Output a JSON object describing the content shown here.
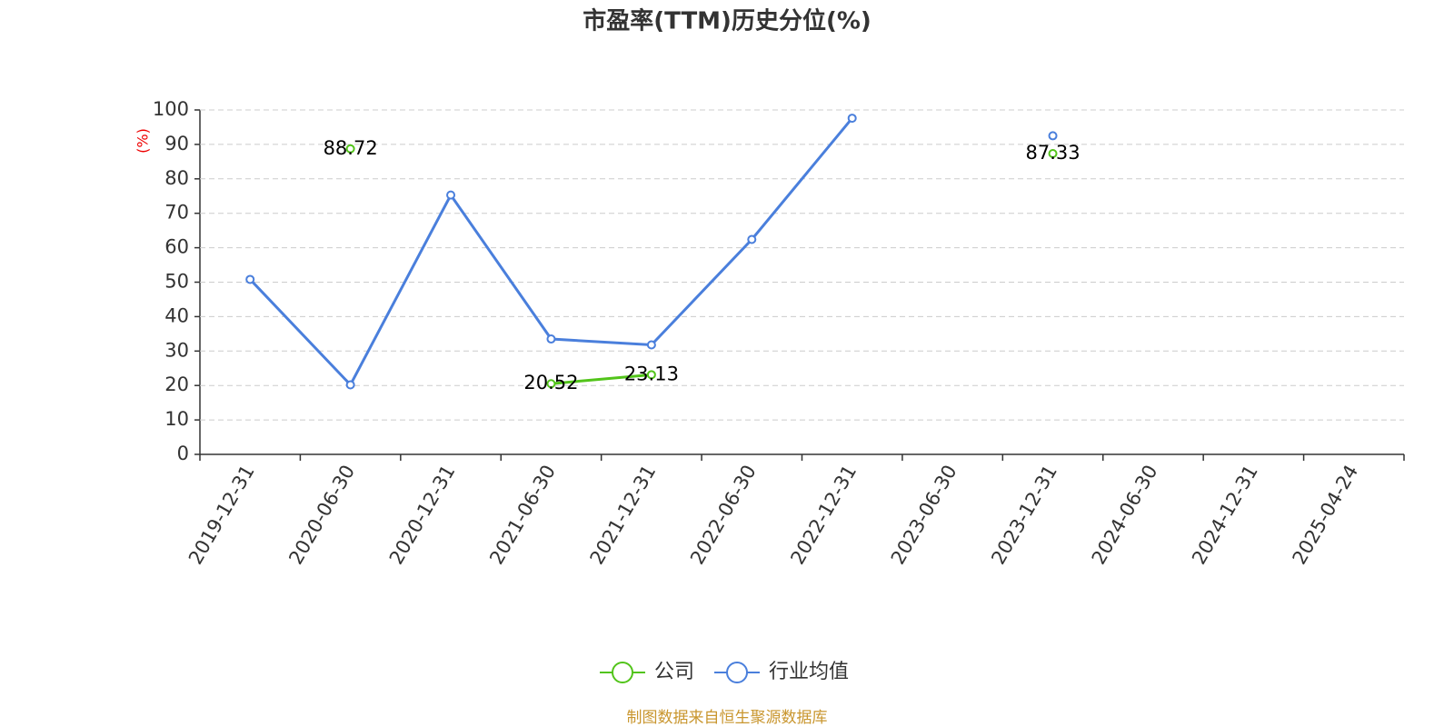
{
  "chart_data": {
    "type": "line",
    "title": "市盈率(TTM)历史分位(%)",
    "y_label": "(%)",
    "source": "制图数据来自恒生聚源数据库",
    "categories": [
      "2019-12-31",
      "2020-06-30",
      "2020-12-31",
      "2021-06-30",
      "2021-12-31",
      "2022-06-30",
      "2022-12-31",
      "2023-06-30",
      "2023-12-31",
      "2024-06-30",
      "2024-12-31",
      "2025-04-24"
    ],
    "series": [
      {
        "name": "公司",
        "color": "#52c41a",
        "data_labels": true,
        "values": [
          null,
          88.72,
          null,
          20.52,
          23.13,
          null,
          null,
          null,
          87.33,
          null,
          null,
          null
        ]
      },
      {
        "name": "行业均值",
        "color": "#4a7fdc",
        "data_labels": false,
        "values": [
          50.8,
          20.2,
          75.3,
          33.5,
          31.8,
          62.4,
          97.6,
          null,
          92.5,
          null,
          null,
          null
        ]
      }
    ],
    "ylim": [
      0,
      100
    ],
    "yticks": [
      0,
      10,
      20,
      30,
      40,
      50,
      60,
      70,
      80,
      90,
      100
    ],
    "grid": true,
    "legend": "bottom"
  }
}
